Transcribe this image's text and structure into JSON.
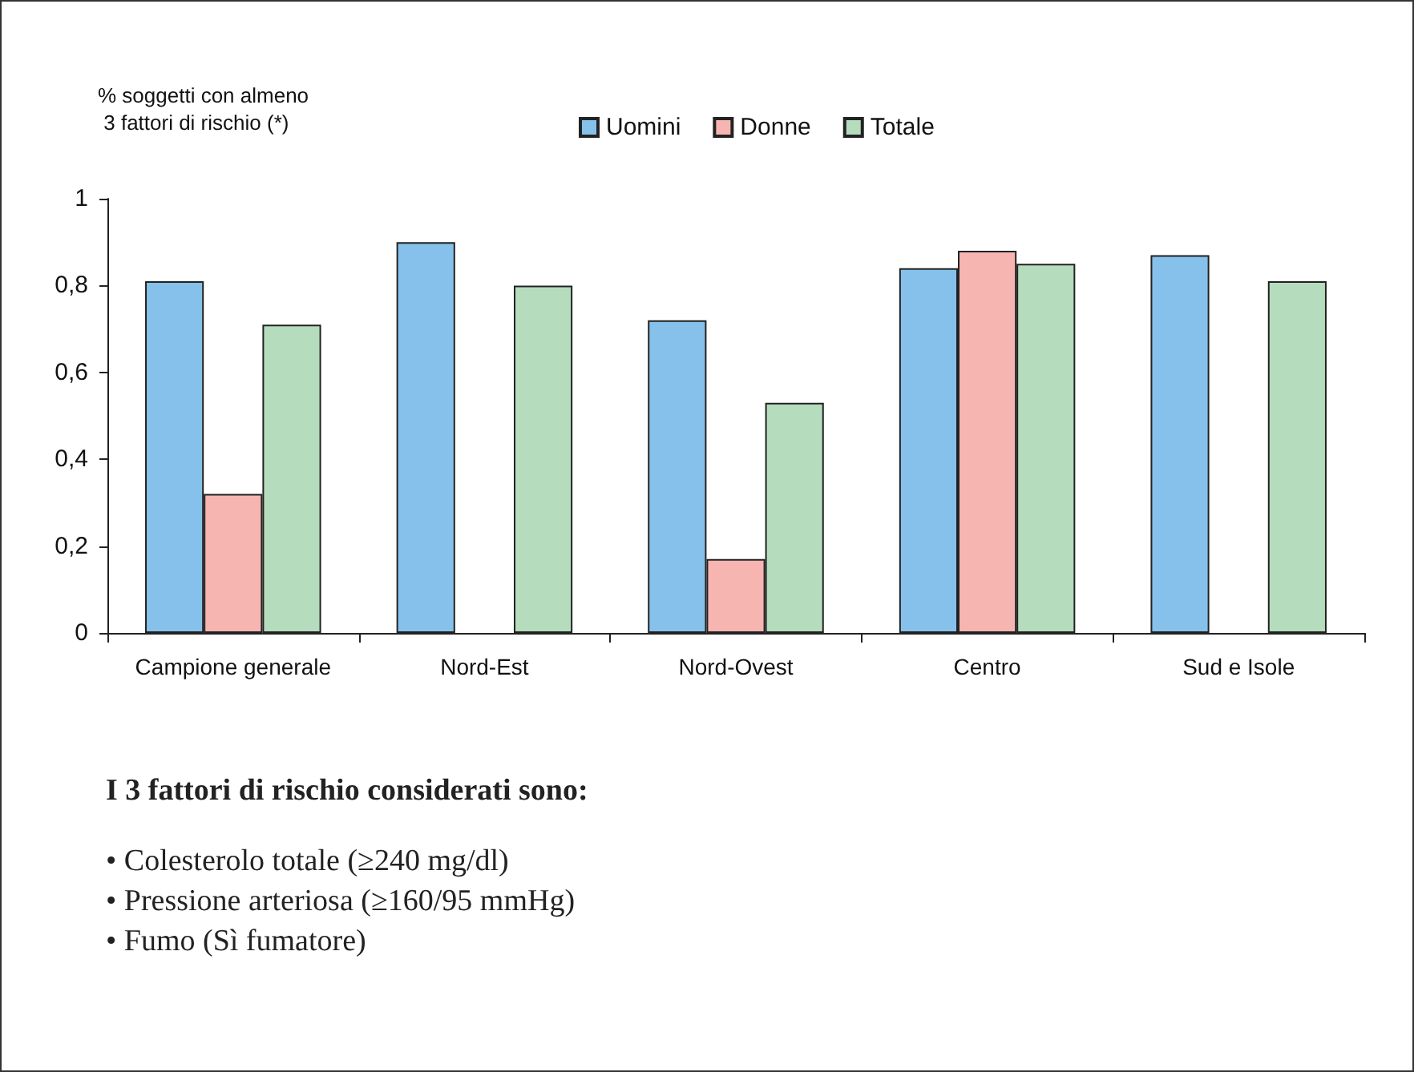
{
  "chart_data": {
    "type": "bar",
    "ylabel": "% soggetti con almeno 3 fattori di rischio (*)",
    "categories": [
      "Campione generale",
      "Nord-Est",
      "Nord-Ovest",
      "Centro",
      "Sud e Isole"
    ],
    "series": [
      {
        "name": "Uomini",
        "color": "#85c1ea",
        "values": [
          0.81,
          0.9,
          0.72,
          0.84,
          0.87
        ]
      },
      {
        "name": "Donne",
        "color": "#f7b5b2",
        "values": [
          0.32,
          null,
          0.17,
          0.88,
          null
        ]
      },
      {
        "name": "Totale",
        "color": "#b5dcbd",
        "values": [
          0.71,
          0.8,
          0.53,
          0.85,
          0.81
        ]
      }
    ],
    "ylim": [
      0,
      1
    ],
    "yticks": [
      0,
      {
        "value": 0.2,
        "label": "0,2"
      },
      {
        "value": 0.4,
        "label": "0,4"
      },
      {
        "value": 0.6,
        "label": "0,6"
      },
      {
        "value": 0.8,
        "label": "0,8"
      },
      1
    ],
    "grid": false,
    "legend": "top",
    "annotations": [
      "I 3 fattori di rischio considerati sono:",
      "• Colesterolo totale (≥240 mg/dl)",
      "• Pressione arteriosa (≥160/95 mmHg)",
      "• Fumo (Sì fumatore)"
    ]
  }
}
